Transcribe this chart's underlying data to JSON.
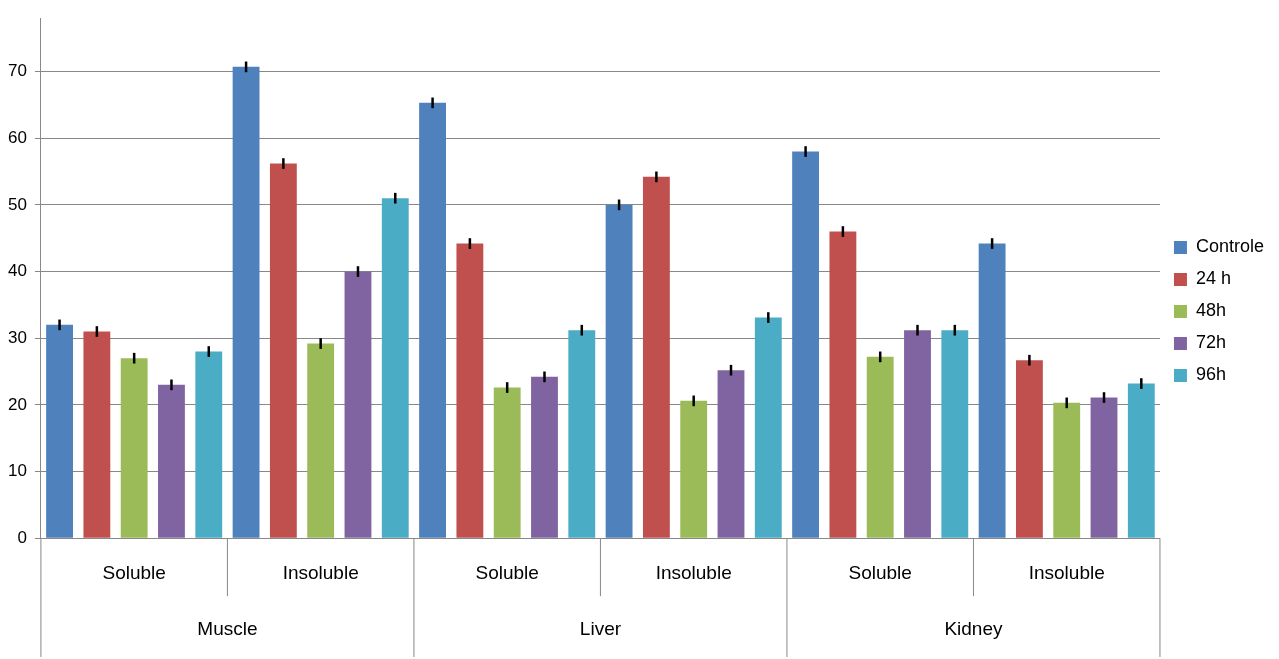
{
  "chart_data": {
    "type": "bar",
    "categories": [
      "Soluble",
      "Insoluble",
      "Soluble",
      "Insoluble",
      "Soluble",
      "Insoluble"
    ],
    "series": [
      {
        "name": "Controle",
        "color": "#4f81bd",
        "values": [
          32,
          70.7,
          65.3,
          50,
          58,
          44.2
        ],
        "errors": [
          0.8,
          0.8,
          0.8,
          0.8,
          0.8,
          0.8
        ]
      },
      {
        "name": "24 h",
        "color": "#c0504d",
        "values": [
          31,
          56.2,
          44.2,
          54.2,
          46,
          26.7
        ],
        "errors": [
          0.8,
          0.8,
          0.8,
          0.8,
          0.8,
          0.8
        ]
      },
      {
        "name": "48h",
        "color": "#9bbb59",
        "values": [
          27,
          29.2,
          22.6,
          20.6,
          27.2,
          20.3
        ],
        "errors": [
          0.8,
          0.8,
          0.8,
          0.8,
          0.8,
          0.8
        ]
      },
      {
        "name": "72h",
        "color": "#8064a2",
        "values": [
          23,
          40,
          24.2,
          25.2,
          31.2,
          21.1
        ],
        "errors": [
          0.8,
          0.8,
          0.8,
          0.8,
          0.8,
          0.8
        ]
      },
      {
        "name": "96h",
        "color": "#4bacc6",
        "values": [
          28,
          51,
          31.2,
          33.1,
          31.2,
          23.2
        ],
        "errors": [
          0.8,
          0.8,
          0.8,
          0.8,
          0.8,
          0.8
        ]
      }
    ],
    "annotations": [
      "Muscle",
      "Liver",
      "Kidney"
    ],
    "ylim": [
      0,
      78
    ],
    "yticks": [
      0,
      10,
      20,
      30,
      40,
      50,
      60,
      70
    ],
    "grid": "y",
    "legend": "right"
  }
}
